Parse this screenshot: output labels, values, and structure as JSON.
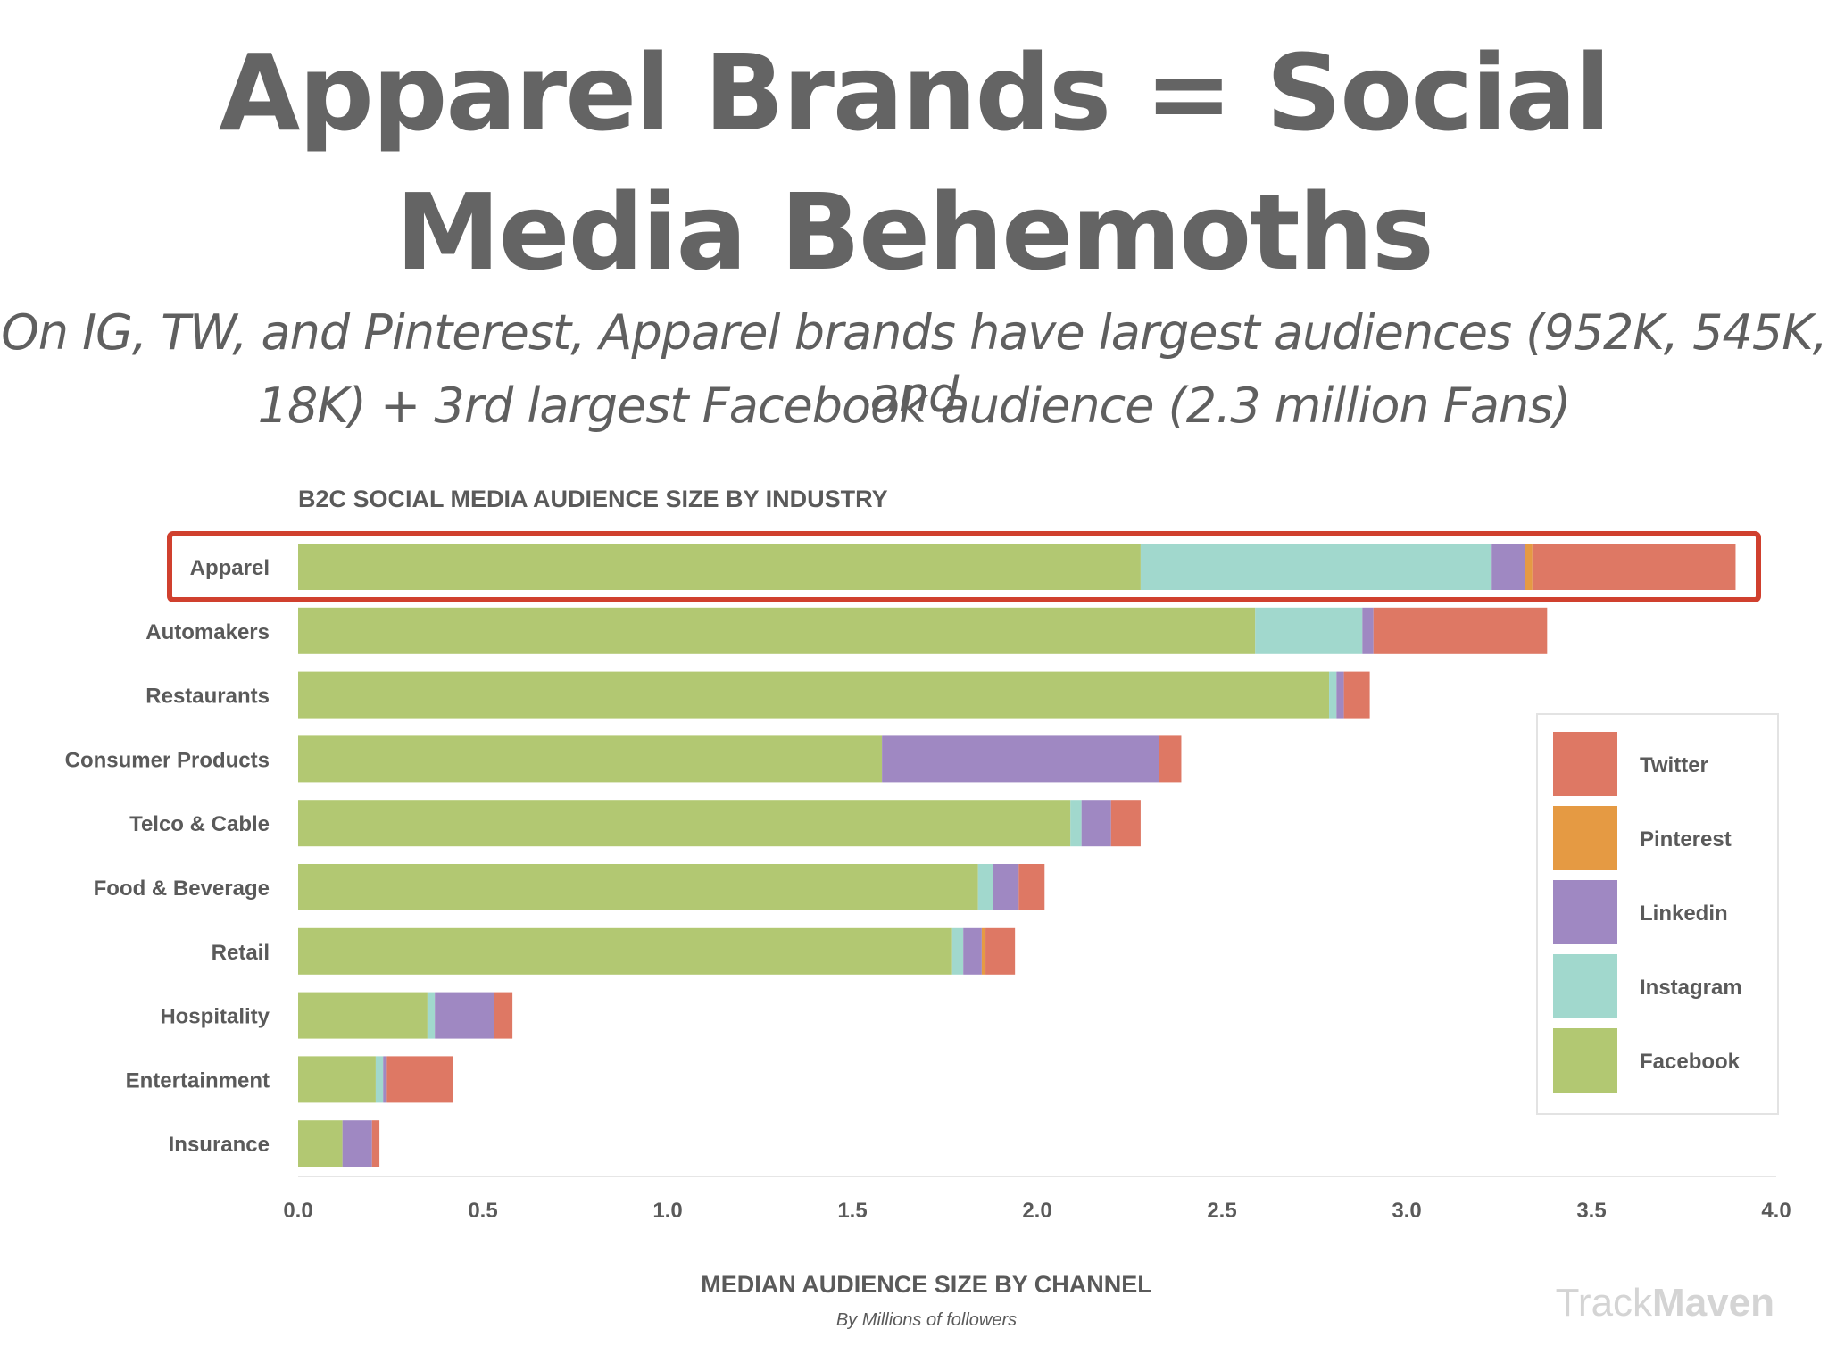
{
  "headline": {
    "title_line_1": "Apparel Brands = Social",
    "title_line_2": "Media Behemoths",
    "subtitle_line_1": "On IG, TW, and Pinterest, Apparel brands have largest audiences (952K, 545K, and",
    "subtitle_line_2": "18K) + 3rd largest Facebook audience (2.3 million Fans)"
  },
  "chart_data": {
    "type": "bar",
    "orientation": "horizontal",
    "stacked": true,
    "title": "B2C SOCIAL MEDIA AUDIENCE SIZE BY INDUSTRY",
    "xlabel": "MEDIAN AUDIENCE SIZE BY CHANNEL",
    "xlabel_sub": "By Millions of followers",
    "watermark": {
      "part1": "Track",
      "part2": "Maven"
    },
    "xlim": [
      0,
      4.0
    ],
    "xticks": [
      "0.0",
      "0.5",
      "1.0",
      "1.5",
      "2.0",
      "2.5",
      "3.0",
      "3.5",
      "4.0"
    ],
    "grid": false,
    "legend_position": "right",
    "highlight_category": "Apparel",
    "highlight_color": "#d0402e",
    "categories": [
      "Apparel",
      "Automakers",
      "Restaurants",
      "Consumer Products",
      "Telco & Cable",
      "Food & Beverage",
      "Retail",
      "Hospitality",
      "Entertainment",
      "Insurance"
    ],
    "series": [
      {
        "name": "Facebook",
        "color": "#b2c872",
        "values": [
          2.28,
          2.59,
          2.79,
          1.58,
          2.09,
          1.84,
          1.77,
          0.35,
          0.21,
          0.12
        ]
      },
      {
        "name": "Instagram",
        "color": "#a1d8cd",
        "values": [
          0.95,
          0.29,
          0.02,
          0.0,
          0.03,
          0.04,
          0.03,
          0.02,
          0.02,
          0.0
        ]
      },
      {
        "name": "Linkedin",
        "color": "#9f88c2",
        "values": [
          0.09,
          0.03,
          0.02,
          0.75,
          0.08,
          0.07,
          0.05,
          0.16,
          0.01,
          0.08
        ]
      },
      {
        "name": "Pinterest",
        "color": "#e59a43",
        "values": [
          0.02,
          0.0,
          0.0,
          0.0,
          0.0,
          0.0,
          0.01,
          0.0,
          0.0,
          0.0
        ]
      },
      {
        "name": "Twitter",
        "color": "#de7864",
        "values": [
          0.55,
          0.47,
          0.07,
          0.06,
          0.08,
          0.07,
          0.08,
          0.05,
          0.18,
          0.02
        ]
      }
    ],
    "legend_order": [
      "Twitter",
      "Pinterest",
      "Linkedin",
      "Instagram",
      "Facebook"
    ]
  }
}
